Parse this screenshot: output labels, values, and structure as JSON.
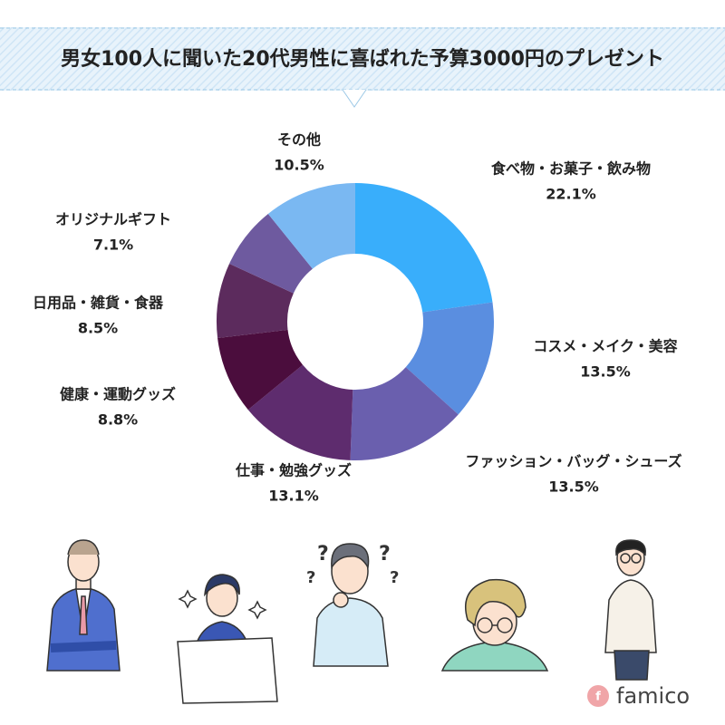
{
  "chart_data": {
    "type": "pie",
    "title": "男女100人に聞いた20代男性に喜ばれた予算3000円のプレゼント",
    "categories": [
      "食べ物・お菓子・飲み物",
      "コスメ・メイク・美容",
      "ファッション・バッグ・シューズ",
      "仕事・勉強グッズ",
      "健康・運動グッズ",
      "日用品・雑貨・食器",
      "オリジナルギフト",
      "その他"
    ],
    "values": [
      22.1,
      13.5,
      13.5,
      13.1,
      8.8,
      8.5,
      7.1,
      10.5
    ],
    "value_labels": [
      "22.1%",
      "13.5%",
      "13.5%",
      "13.1%",
      "8.8%",
      "8.5%",
      "7.1%",
      "10.5%"
    ],
    "colors": [
      "#39aefb",
      "#5a8ee0",
      "#6a5fae",
      "#5e2c6e",
      "#4b0d3d",
      "#5c2b5d",
      "#6e5a9f",
      "#7ab8f2"
    ],
    "donut": true
  },
  "brand": {
    "icon": "f",
    "name": "famico"
  }
}
